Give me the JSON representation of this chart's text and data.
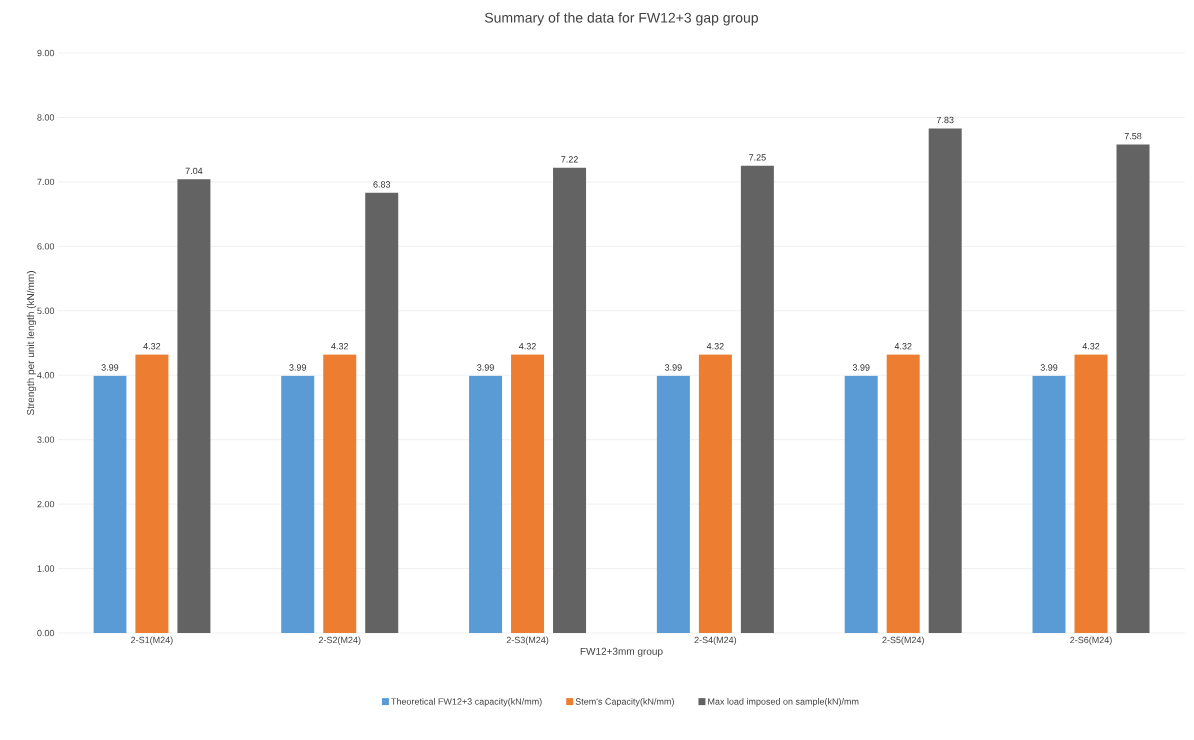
{
  "chart_data": {
    "type": "bar",
    "title": "Summary of the data for FW12+3 gap group",
    "xlabel": "FW12+3mm group",
    "ylabel": "Strength per unit length  (kN/mm)",
    "categories": [
      "2-S1(M24)",
      "2-S2(M24)",
      "2-S3(M24)",
      "2-S4(M24)",
      "2-S5(M24)",
      "2-S6(M24)"
    ],
    "series": [
      {
        "name": "Theoretical FW12+3 capacity(kN/mm)",
        "color": "#5b9bd5",
        "values": [
          3.99,
          3.99,
          3.99,
          3.99,
          3.99,
          3.99
        ],
        "value_labels": [
          "3.99",
          "3.99",
          "3.99",
          "3.99",
          "3.99",
          "3.99"
        ]
      },
      {
        "name": "Stem's Capacity(kN/mm)",
        "color": "#ed7d31",
        "values": [
          4.32,
          4.32,
          4.32,
          4.32,
          4.32,
          4.32
        ],
        "value_labels": [
          "4.32",
          "4.32",
          "4.32",
          "4.32",
          "4.32",
          "4.32"
        ]
      },
      {
        "name": "Max load imposed on sample(kN)/mm",
        "color": "#636363",
        "values": [
          7.04,
          6.83,
          7.22,
          7.25,
          7.83,
          7.58
        ],
        "value_labels": [
          "7.04",
          "6.83",
          "7.22",
          "7.25",
          "7.83",
          "7.58"
        ]
      }
    ],
    "ylim": [
      0,
      9
    ],
    "yticks": [
      {
        "value": 0,
        "label": "0.00"
      },
      {
        "value": 1,
        "label": "1.00"
      },
      {
        "value": 2,
        "label": "2.00"
      },
      {
        "value": 3,
        "label": "3.00"
      },
      {
        "value": 4,
        "label": "4.00"
      },
      {
        "value": 5,
        "label": "5.00"
      },
      {
        "value": 6,
        "label": "6.00"
      },
      {
        "value": 7,
        "label": "7.00"
      },
      {
        "value": 8,
        "label": "8.00"
      },
      {
        "value": 9,
        "label": "9.00"
      }
    ],
    "grid": "y",
    "legend": "bottom"
  }
}
